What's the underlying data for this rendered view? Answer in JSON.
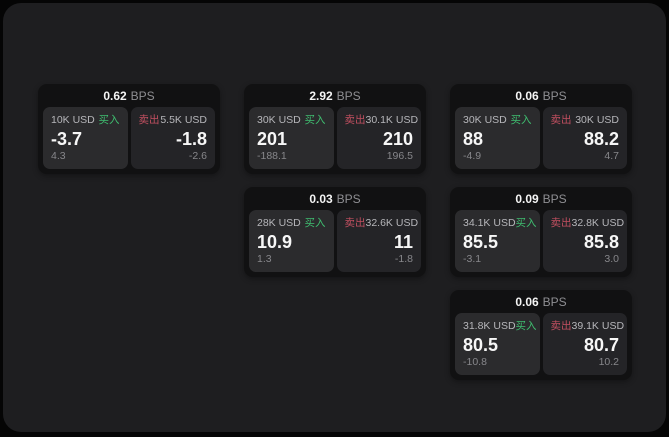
{
  "labels": {
    "bps_unit": "BPS",
    "buy": "买入",
    "sell": "卖出"
  },
  "colors": {
    "buy": "#3fbe70",
    "sell": "#c14f60",
    "panel_bg": "#1e1e20",
    "card_bg": "#111112",
    "buy_panel_bg": "#2b2b2d",
    "sell_panel_bg": "#242427"
  },
  "cards": [
    {
      "row": 1,
      "col": 1,
      "bps": "0.62",
      "buy": {
        "amount": "10K USD",
        "price": "-3.7",
        "sub": "4.3"
      },
      "sell": {
        "amount": "5.5K USD",
        "price": "-1.8",
        "sub": "-2.6"
      }
    },
    {
      "row": 1,
      "col": 2,
      "bps": "2.92",
      "buy": {
        "amount": "30K USD",
        "price": "201",
        "sub": "-188.1"
      },
      "sell": {
        "amount": "30.1K USD",
        "price": "210",
        "sub": "196.5"
      }
    },
    {
      "row": 1,
      "col": 3,
      "bps": "0.06",
      "buy": {
        "amount": "30K USD",
        "price": "88",
        "sub": "-4.9"
      },
      "sell": {
        "amount": "30K USD",
        "price": "88.2",
        "sub": "4.7"
      }
    },
    {
      "row": 2,
      "col": 2,
      "bps": "0.03",
      "buy": {
        "amount": "28K USD",
        "price": "10.9",
        "sub": "1.3"
      },
      "sell": {
        "amount": "32.6K USD",
        "price": "11",
        "sub": "-1.8"
      }
    },
    {
      "row": 2,
      "col": 3,
      "bps": "0.09",
      "buy": {
        "amount": "34.1K USD",
        "price": "85.5",
        "sub": "-3.1"
      },
      "sell": {
        "amount": "32.8K USD",
        "price": "85.8",
        "sub": "3.0"
      }
    },
    {
      "row": 3,
      "col": 3,
      "bps": "0.06",
      "buy": {
        "amount": "31.8K USD",
        "price": "80.5",
        "sub": "-10.8"
      },
      "sell": {
        "amount": "39.1K USD",
        "price": "80.7",
        "sub": "10.2"
      }
    }
  ]
}
